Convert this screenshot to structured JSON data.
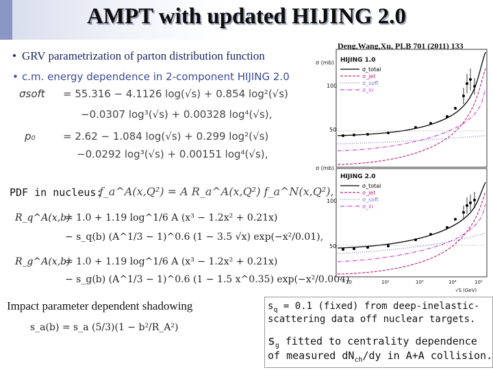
{
  "slide": {
    "title": "AMPT with updated HIJING 2.0",
    "citation": "Deng,Wang,Xu, PLB 701 (2011) 133",
    "bullets": [
      "GRV parametrization of parton distribution function",
      "c.m. energy dependence in 2-component HIJING 2.0"
    ],
    "bullet_symbol": "•"
  },
  "formulas": {
    "sigma_soft_lhs": "σsoft",
    "sigma_soft_line1": "=   55.316 − 4.1126 log(√s) + 0.854 log²(√s)",
    "sigma_soft_line2": "−0.0307 log³(√s) + 0.00328 log⁴(√s),",
    "p0_lhs": "p₀",
    "p0_line1": "=   2.62 − 1.084 log(√s) + 0.299 log²(√s)",
    "p0_line2": "−0.0292 log³(√s) + 0.00151 log⁴(√s),",
    "pdf_label": "PDF in nucleus:",
    "pdf_formula": "f_a^A(x,Q²) = A R_a^A(x,Q²) f_a^N(x,Q²),",
    "rq_lhs": "R_q^A(x,b)",
    "rq_line1": "=   1.0 + 1.19 log^1/6 A (x³ − 1.2x² + 0.21x)",
    "rq_line2": "−   s_q(b) (A^1/3 − 1)^0.6 (1 − 3.5 √x) exp(−x²/0.01),",
    "rg_lhs": "R_g^A(x,b)",
    "rg_line1": "=   1.0 + 1.19 log^1/6 A (x³ − 1.2x² + 0.21x)",
    "rg_line2": "−   s_g(b) (A^1/3 − 1)^0.6 (1 − 1.5 x^0.35) exp(−x²/0.004)",
    "impact_label": "Impact parameter dependent shadowing",
    "impact_formula": "s_a(b) = s_a (5/3)(1 − b²/R_A²)"
  },
  "notes": {
    "line1": "s = 0.1 (fixed) from deep-inelastic-",
    "line1_sub": "q",
    "line2": "scattering data off nuclear targets.",
    "line3_symbol": "s",
    "line3_sub": "g",
    "line3": "fitted to centrality dependence",
    "line4_a": "of measured dN",
    "line4_sub": "ch",
    "line4_b": "/dy in A+A collision."
  },
  "plot_top": {
    "panel_label": "HIJING 1.0",
    "y_axis_label": "σ (mb)",
    "legend": [
      "σ_total",
      "σ_jet",
      "σ_soft",
      "σ_in"
    ],
    "ticks_y": [
      "100",
      "50"
    ]
  },
  "plot_bottom": {
    "panel_label": "HIJING 2.0",
    "y_axis_label": "σ (mb)",
    "legend": [
      "σ_total",
      "σ_jet",
      "σ_soft",
      "σ_in"
    ],
    "ticks_y": [
      "100",
      "50"
    ],
    "ticks_x": [
      "10",
      "10²",
      "10³",
      "10⁴",
      "10⁵"
    ],
    "x_axis_label": "√S (GeV)"
  },
  "colors": {
    "title_band": "#d7dcec",
    "left_bar": "#8a96c4",
    "bullet_text": "#2a3a8a",
    "total": "#000000",
    "jet": "#c0287a",
    "soft": "#7a7ac8",
    "inel": "#c84ad0"
  }
}
